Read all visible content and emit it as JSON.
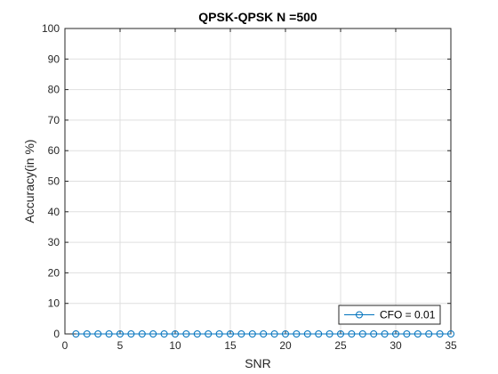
{
  "chart_data": {
    "type": "line",
    "title": "QPSK-QPSK N =500",
    "xlabel": "SNR",
    "ylabel": "Accuracy(in %)",
    "xlim": [
      0,
      35
    ],
    "ylim": [
      0,
      100
    ],
    "xticks": [
      0,
      5,
      10,
      15,
      20,
      25,
      30,
      35
    ],
    "yticks": [
      0,
      10,
      20,
      30,
      40,
      50,
      60,
      70,
      80,
      90,
      100
    ],
    "grid": true,
    "legend_position": "bottom-right",
    "series": [
      {
        "name": "CFO = 0.01",
        "color": "#0072BD",
        "marker": "circle",
        "x": [
          1,
          2,
          3,
          4,
          5,
          6,
          7,
          8,
          9,
          10,
          11,
          12,
          13,
          14,
          15,
          16,
          17,
          18,
          19,
          20,
          21,
          22,
          23,
          24,
          25,
          26,
          27,
          28,
          29,
          30,
          31,
          32,
          33,
          34,
          35
        ],
        "y": [
          0,
          0,
          0,
          0,
          0,
          0,
          0,
          0,
          0,
          0,
          0,
          0,
          0,
          0,
          0,
          0,
          0,
          0,
          0,
          0,
          0,
          0,
          0,
          0,
          0,
          0,
          0,
          0,
          0,
          0,
          0,
          0,
          0,
          0,
          0
        ]
      }
    ]
  }
}
